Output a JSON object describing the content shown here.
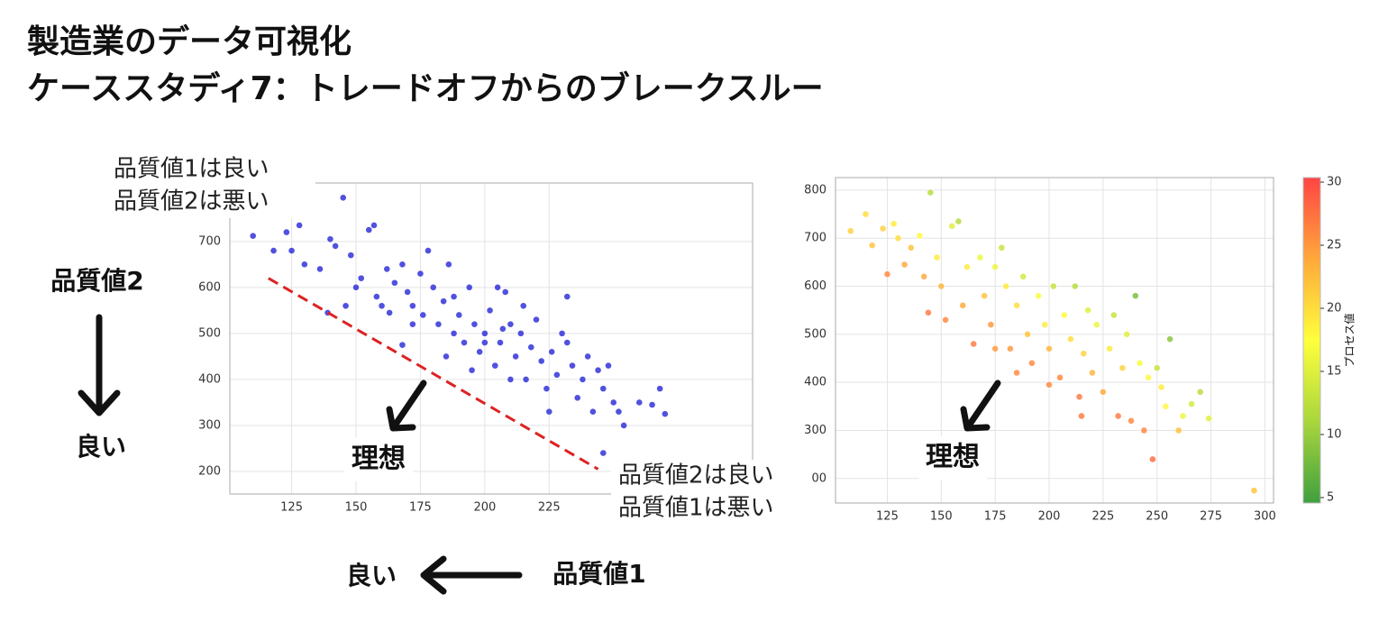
{
  "title": [
    "製造業のデータ可視化",
    "ケーススタディ7：トレードオフからのブレークスルー"
  ],
  "labels": {
    "y_axis": "品質値2",
    "y_good": "良い",
    "x_axis": "品質値1",
    "x_good": "良い"
  },
  "chart_data": [
    {
      "type": "scatter",
      "color": "#2b2bd8",
      "grid": true,
      "xlim": [
        101,
        304
      ],
      "ylim": [
        151,
        827
      ],
      "xticks": [
        125,
        150,
        175,
        200,
        225
      ],
      "yticks": [
        200,
        300,
        400,
        500,
        600,
        700
      ],
      "x": [
        110,
        118,
        123,
        125,
        128,
        130,
        136,
        140,
        142,
        145,
        148,
        150,
        152,
        155,
        157,
        158,
        160,
        162,
        165,
        168,
        170,
        172,
        175,
        176,
        178,
        180,
        182,
        184,
        186,
        188,
        190,
        192,
        194,
        196,
        198,
        200,
        202,
        204,
        206,
        208,
        210,
        212,
        214,
        216,
        218,
        220,
        222,
        224,
        226,
        228,
        230,
        232,
        234,
        236,
        238,
        240,
        242,
        244,
        246,
        248,
        250,
        252,
        254,
        260,
        265,
        268,
        270,
        163,
        168,
        185,
        195,
        210,
        225,
        246,
        172,
        188,
        205,
        215,
        232,
        146,
        139,
        200,
        207
      ],
      "values": [
        712,
        680,
        720,
        680,
        735,
        650,
        640,
        705,
        690,
        795,
        670,
        600,
        620,
        725,
        735,
        580,
        560,
        640,
        610,
        650,
        590,
        560,
        630,
        540,
        680,
        600,
        520,
        570,
        650,
        500,
        540,
        480,
        600,
        520,
        460,
        500,
        550,
        430,
        480,
        590,
        520,
        450,
        500,
        400,
        470,
        530,
        440,
        380,
        460,
        410,
        500,
        580,
        430,
        360,
        400,
        450,
        330,
        420,
        380,
        430,
        350,
        330,
        300,
        350,
        345,
        380,
        325,
        545,
        475,
        450,
        420,
        400,
        330,
        240,
        520,
        580,
        600,
        560,
        480,
        560,
        545,
        480,
        510
      ],
      "reference_line": {
        "x": [
          116,
          244
        ],
        "y": [
          620,
          205
        ],
        "color": "#dd2222"
      },
      "ideal": "理想",
      "annotations": [
        [
          "品質値1は良い",
          "品質値2は悪い"
        ],
        [
          "品質値2は良い",
          "品質値1は悪い"
        ]
      ]
    },
    {
      "type": "scatter",
      "grid": true,
      "xlim": [
        101,
        304
      ],
      "ylim": [
        149,
        826
      ],
      "xticks": [
        125,
        150,
        175,
        200,
        225,
        250,
        275,
        300
      ],
      "yticks": [
        {
          "value": 200,
          "label": "00"
        },
        300,
        400,
        500,
        600,
        700,
        800
      ],
      "x": [
        108,
        115,
        118,
        123,
        125,
        128,
        130,
        133,
        136,
        140,
        142,
        144,
        145,
        148,
        150,
        152,
        155,
        158,
        160,
        162,
        165,
        168,
        170,
        173,
        175,
        178,
        180,
        182,
        185,
        188,
        190,
        192,
        195,
        198,
        200,
        202,
        205,
        207,
        210,
        212,
        214,
        216,
        218,
        220,
        222,
        225,
        228,
        230,
        232,
        234,
        236,
        238,
        240,
        242,
        244,
        246,
        248,
        250,
        252,
        254,
        256,
        260,
        262,
        266,
        270,
        274,
        295,
        175,
        185,
        200,
        215
      ],
      "values": [
        715,
        750,
        685,
        720,
        625,
        730,
        700,
        645,
        680,
        705,
        620,
        545,
        795,
        660,
        600,
        530,
        725,
        735,
        560,
        640,
        480,
        660,
        580,
        520,
        640,
        680,
        600,
        470,
        560,
        620,
        500,
        440,
        580,
        520,
        470,
        600,
        410,
        540,
        490,
        600,
        370,
        460,
        550,
        420,
        520,
        380,
        470,
        540,
        330,
        430,
        500,
        320,
        580,
        440,
        300,
        410,
        240,
        430,
        390,
        350,
        490,
        300,
        330,
        355,
        380,
        325,
        175,
        470,
        420,
        395,
        330
      ],
      "c": [
        21,
        20,
        22,
        21,
        26,
        19,
        20,
        24,
        22,
        18,
        24,
        27,
        12,
        19,
        23,
        26,
        15,
        12,
        24,
        19,
        27,
        16,
        22,
        25,
        16,
        13,
        19,
        25,
        20,
        14,
        22,
        26,
        17,
        19,
        23,
        13,
        26,
        18,
        20,
        12,
        27,
        21,
        15,
        23,
        16,
        24,
        19,
        13,
        27,
        21,
        15,
        26,
        8,
        17,
        26,
        18,
        28,
        13,
        19,
        18,
        9,
        22,
        16,
        14,
        12,
        15,
        22,
        25,
        26,
        26,
        27
      ],
      "clim": [
        4.57,
        30.36
      ],
      "cticks": [
        5,
        10,
        15,
        20,
        25,
        30
      ],
      "colormap": [
        "#3f9f3f",
        "#a9d63c",
        "#ffff3c",
        "#ffa83a",
        "#ff4444"
      ],
      "colorbar_label": "プロセス値",
      "ideal": "理想"
    }
  ]
}
